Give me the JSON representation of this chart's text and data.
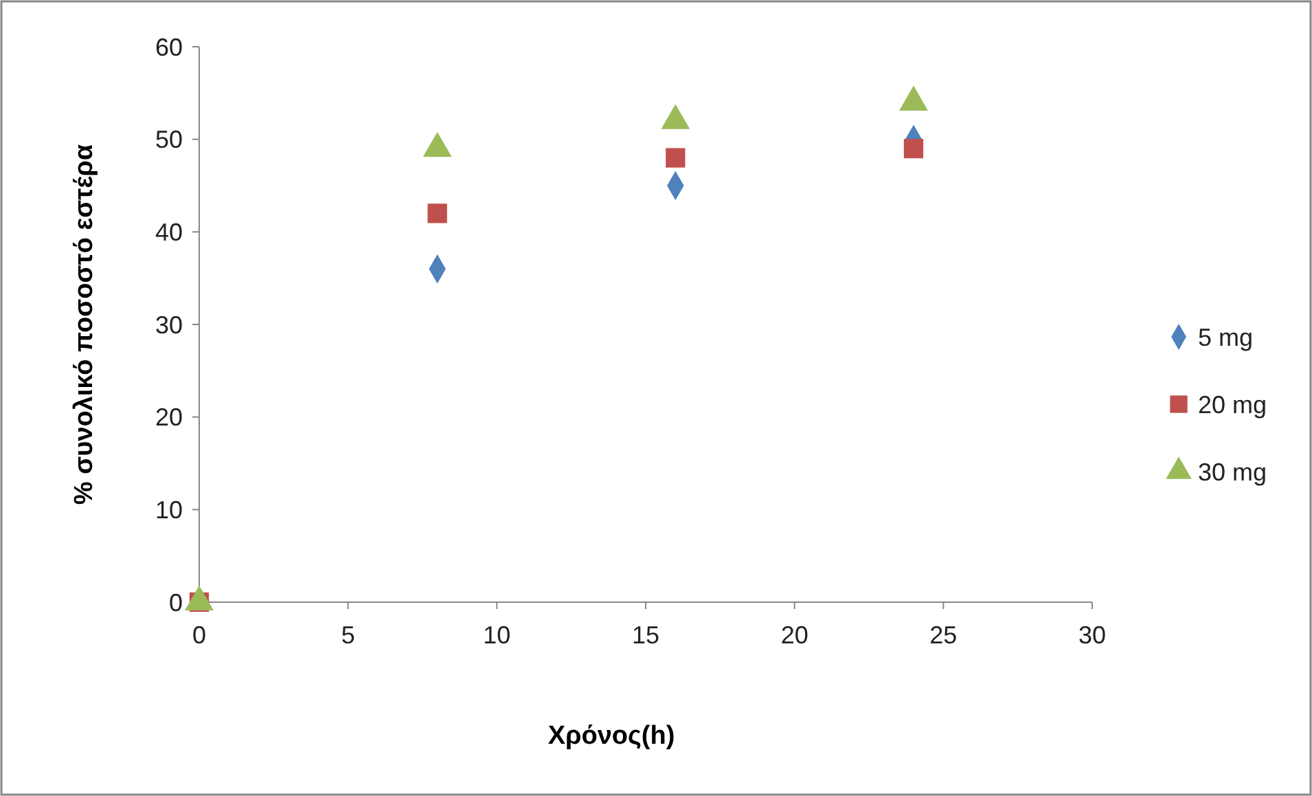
{
  "chart_data": {
    "type": "scatter",
    "xlabel": "Χρόνος(h)",
    "ylabel": "% συνολικό ποσοστό εστέρα",
    "xlim": [
      0,
      30
    ],
    "xticks": [
      0,
      5,
      10,
      15,
      20,
      25,
      30
    ],
    "ylim": [
      0,
      60
    ],
    "yticks": [
      0,
      10,
      20,
      30,
      40,
      50,
      60
    ],
    "grid": false,
    "legend": "right",
    "x": [
      0,
      8,
      16,
      24
    ],
    "series": [
      {
        "name": "5 mg",
        "color": "#4f81bd",
        "marker": "diamond",
        "values": [
          null,
          36,
          45,
          50
        ]
      },
      {
        "name": "20 mg",
        "color": "#c0504d",
        "marker": "square",
        "values": [
          0,
          42,
          48,
          49
        ]
      },
      {
        "name": "30 mg",
        "color": "#9bbb59",
        "marker": "triangle",
        "values": [
          0,
          49,
          52,
          54
        ]
      }
    ]
  }
}
